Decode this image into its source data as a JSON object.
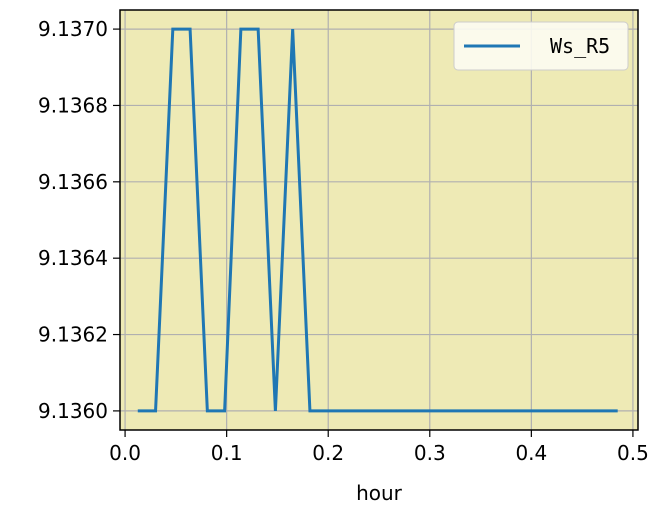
{
  "chart_data": {
    "type": "line",
    "title": "",
    "xlabel": "hour",
    "ylabel": "",
    "xlim": [
      -0.005,
      0.505
    ],
    "ylim": [
      9.13595,
      9.13705
    ],
    "xticks": [
      0.0,
      0.1,
      0.2,
      0.3,
      0.4,
      0.5
    ],
    "xtick_labels": [
      "0.0",
      "0.1",
      "0.2",
      "0.3",
      "0.4",
      "0.5"
    ],
    "yticks": [
      9.136,
      9.1362,
      9.1364,
      9.1366,
      9.1368,
      9.137
    ],
    "ytick_labels": [
      "9.1360",
      "9.1362",
      "9.1364",
      "9.1366",
      "9.1368",
      "9.1370"
    ],
    "grid": true,
    "legend_position": "top-right",
    "plot_background": "#eeeab5",
    "series": [
      {
        "name": "Ws_R5",
        "color": "#1f77b4",
        "x": [
          0.0125,
          0.03,
          0.047,
          0.064,
          0.081,
          0.098,
          0.114,
          0.131,
          0.148,
          0.165,
          0.182,
          0.485
        ],
        "y": [
          9.136,
          9.136,
          9.137,
          9.137,
          9.136,
          9.136,
          9.137,
          9.137,
          9.136,
          9.137,
          9.136,
          9.136
        ]
      }
    ]
  }
}
